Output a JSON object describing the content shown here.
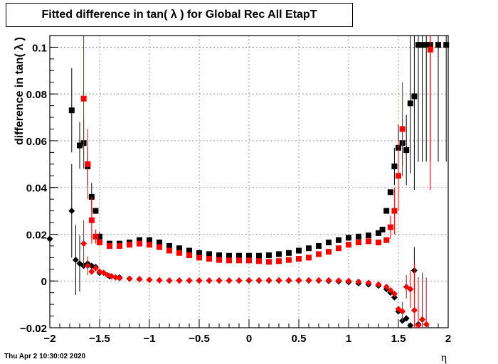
{
  "chart_data": {
    "type": "scatter",
    "title": "Fitted difference in tan( λ ) for Global Rec All EtapT",
    "xlabel": "η",
    "ylabel": "difference in tan( λ )",
    "xlim": [
      -2,
      2
    ],
    "ylim": [
      -0.02,
      0.105
    ],
    "xticks": [
      -2,
      -1.5,
      -1,
      -0.5,
      0,
      0.5,
      1,
      1.5,
      2
    ],
    "xtick_labels": [
      "−2",
      "−1.5",
      "−1",
      "−0.5",
      "0",
      "0.5",
      "1",
      "1.5",
      "2"
    ],
    "yticks": [
      -0.02,
      0,
      0.02,
      0.04,
      0.06,
      0.08,
      0.1
    ],
    "ytick_labels": [
      "−0.02",
      "0",
      "0.02",
      "0.04",
      "0.06",
      "0.08",
      "0.1"
    ],
    "grid": true,
    "series": [
      {
        "color": "#000000",
        "marker": "square",
        "x": [
          -1.78,
          -1.7,
          -1.66,
          -1.62,
          -1.58,
          -1.54,
          -1.5,
          -1.4,
          -1.3,
          -1.2,
          -1.1,
          -1.0,
          -0.9,
          -0.8,
          -0.7,
          -0.6,
          -0.5,
          -0.4,
          -0.3,
          -0.2,
          -0.1,
          0.0,
          0.1,
          0.2,
          0.3,
          0.4,
          0.5,
          0.6,
          0.7,
          0.8,
          0.9,
          1.0,
          1.1,
          1.2,
          1.3,
          1.34,
          1.38,
          1.42,
          1.46,
          1.5,
          1.54,
          1.58,
          1.62,
          1.66,
          1.7,
          1.74,
          1.78,
          1.82,
          1.9,
          1.98
        ],
        "y": [
          0.073,
          0.058,
          0.059,
          0.049,
          0.036,
          0.03,
          0.019,
          0.016,
          0.016,
          0.0165,
          0.0175,
          0.0175,
          0.0165,
          0.015,
          0.014,
          0.013,
          0.012,
          0.0115,
          0.011,
          0.0108,
          0.0108,
          0.0108,
          0.0108,
          0.011,
          0.0115,
          0.012,
          0.013,
          0.014,
          0.015,
          0.0165,
          0.0175,
          0.0185,
          0.019,
          0.0195,
          0.0205,
          0.022,
          0.03,
          0.038,
          0.049,
          0.057,
          0.059,
          0.056,
          0.076,
          0.079,
          0.101,
          0.101,
          0.101,
          0.101,
          0.101,
          0.101
        ],
        "yerr": [
          0.018,
          0.01,
          0.01,
          0.008,
          0.006,
          0.0,
          0.002,
          0.0,
          0.0,
          0.0,
          0.0,
          0.0,
          0.0,
          0.0,
          0.0,
          0.0,
          0.0,
          0.0,
          0.0,
          0.0,
          0.0,
          0.0,
          0.0,
          0.0,
          0.0,
          0.0,
          0.0,
          0.0,
          0.0,
          0.0,
          0.0,
          0.0,
          0.0,
          0.0,
          0.0,
          0.0,
          0.0,
          0.0,
          0.008,
          0.01,
          0.01,
          0.015,
          0.03,
          0.04,
          0.05,
          0.05,
          0.05,
          0.05,
          0.05,
          0.05
        ]
      },
      {
        "color": "#ff0000",
        "marker": "square",
        "x": [
          -1.66,
          -1.62,
          -1.58,
          -1.54,
          -1.5,
          -1.4,
          -1.3,
          -1.2,
          -1.1,
          -1.0,
          -0.9,
          -0.8,
          -0.7,
          -0.6,
          -0.5,
          -0.4,
          -0.3,
          -0.2,
          -0.1,
          0.0,
          0.1,
          0.2,
          0.3,
          0.4,
          0.5,
          0.6,
          0.7,
          0.8,
          0.9,
          1.0,
          1.1,
          1.2,
          1.3,
          1.38,
          1.42,
          1.46,
          1.5,
          1.54,
          1.82
        ],
        "y": [
          0.078,
          0.05,
          0.026,
          0.019,
          0.0165,
          0.015,
          0.015,
          0.0155,
          0.016,
          0.0155,
          0.0145,
          0.013,
          0.012,
          0.011,
          0.01,
          0.0095,
          0.009,
          0.0088,
          0.0088,
          0.0088,
          0.0085,
          0.0082,
          0.0085,
          0.009,
          0.0095,
          0.01,
          0.0115,
          0.0125,
          0.014,
          0.0155,
          0.0165,
          0.017,
          0.0165,
          0.0175,
          0.023,
          0.03,
          0.045,
          0.065,
          0.099
        ],
        "yerr": [
          0.03,
          0.015,
          0.01,
          0.003,
          0.0,
          0.0,
          0.0,
          0.0,
          0.0,
          0.0,
          0.0,
          0.0,
          0.0,
          0.0,
          0.0,
          0.0,
          0.0,
          0.0,
          0.0,
          0.0,
          0.0,
          0.0,
          0.0,
          0.0,
          0.0,
          0.0,
          0.0,
          0.0,
          0.0,
          0.0,
          0.0,
          0.0,
          0.0,
          0.0,
          0.005,
          0.01,
          0.015,
          0.02,
          0.06
        ]
      },
      {
        "color": "#000000",
        "marker": "diamond",
        "x": [
          -2.0,
          -1.78,
          -1.74,
          -1.7,
          -1.66,
          -1.62,
          -1.58,
          -1.54,
          -1.5,
          -1.4,
          -1.3,
          -1.2,
          -1.1,
          -1.0,
          -0.9,
          -0.8,
          -0.7,
          -0.6,
          -0.5,
          -0.4,
          -0.3,
          -0.2,
          -0.1,
          0.0,
          0.1,
          0.2,
          0.3,
          0.4,
          0.5,
          0.6,
          0.7,
          0.8,
          0.9,
          1.0,
          1.1,
          1.2,
          1.3,
          1.38,
          1.42,
          1.46,
          1.5,
          1.54,
          1.58,
          1.62,
          1.66,
          1.7,
          1.74
        ],
        "y": [
          0.018,
          0.03,
          0.009,
          0.0075,
          0.0065,
          0.0075,
          0.0065,
          0.006,
          0.0035,
          0.002,
          0.0015,
          0.001,
          0.0008,
          0.0005,
          0.0003,
          0.0002,
          0.0002,
          0.0002,
          0.0002,
          0.0002,
          0.0002,
          0.0002,
          0.0002,
          0.0002,
          0.0002,
          0.0002,
          0.0002,
          0.0002,
          0.0002,
          0.0002,
          0.0002,
          0.0,
          -0.0002,
          -0.0005,
          -0.001,
          -0.0015,
          -0.002,
          -0.0035,
          -0.005,
          -0.007,
          -0.013,
          -0.017,
          -0.016,
          -0.019,
          0.0045,
          -0.0185,
          -0.0165
        ],
        "yerr": [
          0.01,
          0.02,
          0.015,
          0.012,
          0.0,
          0.0,
          0.0,
          0.0,
          0.0,
          0.0,
          0.0,
          0.0,
          0.0,
          0.0,
          0.0,
          0.0,
          0.0,
          0.0,
          0.0,
          0.0,
          0.0,
          0.0,
          0.0,
          0.0,
          0.0,
          0.0,
          0.0,
          0.0,
          0.0,
          0.0,
          0.0,
          0.0,
          0.0,
          0.0,
          0.0,
          0.0,
          0.0,
          0.0,
          0.0,
          0.0,
          0.0,
          0.0,
          0.0,
          0.0,
          0.01,
          0.02,
          0.02
        ]
      },
      {
        "color": "#ff0000",
        "marker": "diamond",
        "x": [
          -1.66,
          -1.62,
          -1.58,
          -1.54,
          -1.5,
          -1.46,
          -1.42,
          -1.38,
          -1.34,
          -1.3,
          -1.2,
          -1.1,
          -1.0,
          -0.9,
          -0.8,
          -0.7,
          -0.6,
          -0.5,
          -0.4,
          -0.3,
          -0.2,
          -0.1,
          0.0,
          0.1,
          0.2,
          0.3,
          0.4,
          0.5,
          0.6,
          0.7,
          0.8,
          0.9,
          1.0,
          1.1,
          1.2,
          1.3,
          1.38,
          1.42,
          1.46,
          1.5,
          1.54,
          1.58,
          1.62,
          1.66,
          1.7,
          1.74,
          1.78
        ],
        "y": [
          0.016,
          0.0065,
          0.004,
          0.0055,
          0.004,
          0.0035,
          0.0025,
          0.002,
          0.0015,
          0.0012,
          0.001,
          0.0007,
          0.0005,
          0.0003,
          0.0002,
          0.0002,
          0.0002,
          0.0002,
          0.0002,
          0.0002,
          0.0002,
          0.0002,
          0.0003,
          0.0003,
          0.0003,
          0.0003,
          0.0003,
          0.0003,
          0.0003,
          0.0003,
          0.0003,
          0.0002,
          0.0,
          -0.0003,
          -0.0008,
          -0.0015,
          -0.0025,
          -0.004,
          -0.0055,
          -0.012,
          -0.013,
          -0.0025,
          -0.0035,
          -0.0125,
          -0.019,
          -0.0165,
          -0.0185
        ],
        "yerr": [
          0.01,
          0.004,
          0.0,
          0.0,
          0.0,
          0.0,
          0.0,
          0.0,
          0.0,
          0.0,
          0.0,
          0.0,
          0.0,
          0.0,
          0.0,
          0.0,
          0.0,
          0.0,
          0.0,
          0.0,
          0.0,
          0.0,
          0.0,
          0.0,
          0.0,
          0.0,
          0.0,
          0.0,
          0.0,
          0.0,
          0.0,
          0.0,
          0.0,
          0.0,
          0.0,
          0.0,
          0.0,
          0.0,
          0.0,
          0.0,
          0.004,
          0.005,
          0.008,
          0.02,
          0.02,
          0.02,
          0.02
        ]
      }
    ]
  },
  "timestamp": "Thu Apr  2 10:30:02 2020"
}
